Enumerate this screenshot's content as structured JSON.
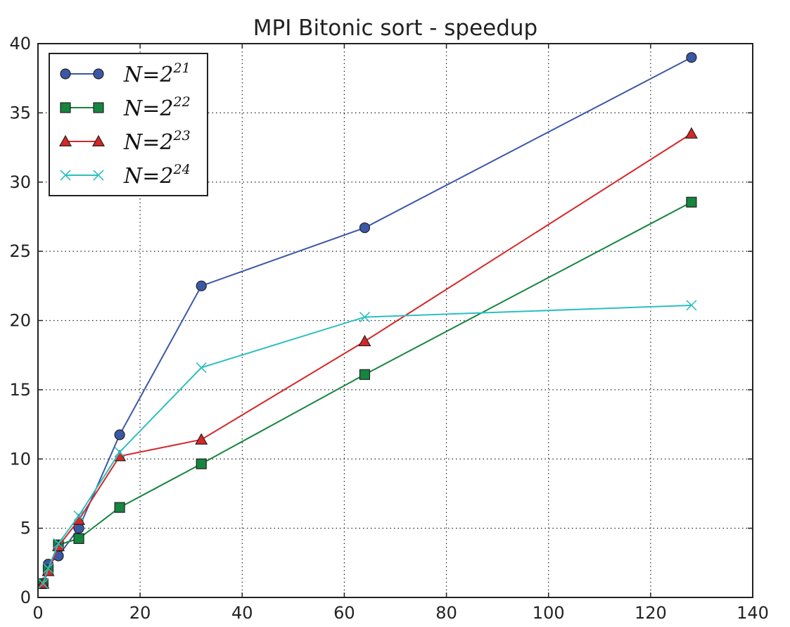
{
  "chart_data": {
    "type": "line",
    "title": "MPI Bitonic sort - speedup",
    "xlabel": "",
    "ylabel": "",
    "xlim": [
      0,
      140
    ],
    "ylim": [
      0,
      40
    ],
    "xticks": [
      0,
      20,
      40,
      60,
      80,
      100,
      120,
      140
    ],
    "yticks": [
      0,
      5,
      10,
      15,
      20,
      25,
      30,
      35,
      40
    ],
    "grid": true,
    "legend_position": "top-left",
    "series": [
      {
        "name": "N = 2^21",
        "legend_base": "N=2",
        "legend_exp": "21",
        "color": "#3b58a6",
        "marker": "circle",
        "x": [
          1,
          2,
          4,
          8,
          16,
          32,
          64,
          128
        ],
        "y": [
          1.0,
          2.4,
          3.0,
          5.0,
          11.75,
          22.5,
          26.7,
          39.0
        ]
      },
      {
        "name": "N = 2^22",
        "legend_base": "N=2",
        "legend_exp": "22",
        "color": "#16853f",
        "marker": "square",
        "x": [
          1,
          2,
          4,
          8,
          16,
          32,
          64,
          128
        ],
        "y": [
          1.0,
          2.0,
          3.8,
          4.25,
          6.5,
          9.65,
          16.1,
          28.55
        ]
      },
      {
        "name": "N = 2^23",
        "legend_base": "N=2",
        "legend_exp": "23",
        "color": "#d62728",
        "marker": "triangle",
        "x": [
          1,
          2,
          4,
          8,
          16,
          32,
          64,
          128
        ],
        "y": [
          1.0,
          1.9,
          3.7,
          5.6,
          10.2,
          11.4,
          18.5,
          33.5
        ]
      },
      {
        "name": "N = 2^24",
        "legend_base": "N=2",
        "legend_exp": "24",
        "color": "#2ebfbf",
        "marker": "x",
        "x": [
          1,
          2,
          4,
          8,
          16,
          32,
          64,
          128
        ],
        "y": [
          1.0,
          2.1,
          3.9,
          5.9,
          10.5,
          16.6,
          20.25,
          21.1
        ]
      }
    ]
  }
}
